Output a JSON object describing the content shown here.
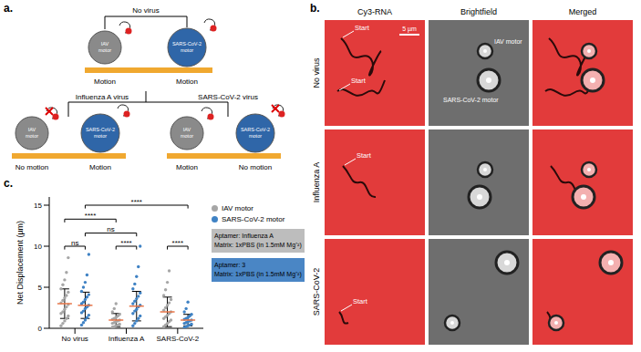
{
  "panel_a": {
    "letter": "a.",
    "top_label": "No virus",
    "motors": [
      "IAV motor",
      "SARS-CoV-2 motor"
    ],
    "conditions": [
      "Influenza A virus",
      "SARS-CoV-2 virus"
    ],
    "states": [
      "Motion",
      "No motion"
    ]
  },
  "panel_b": {
    "letter": "b.",
    "columns": [
      "Cy3-RNA",
      "Brightfield",
      "Merged"
    ],
    "rows": [
      "No virus",
      "Influenza A",
      "SARS-CoV-2"
    ],
    "start_label": "Start",
    "scale_bar": "5 µm",
    "motor_labels": [
      "IAV motor",
      "SARS-CoV-2 motor"
    ]
  },
  "chart_data": {
    "letter": "c.",
    "type": "scatter",
    "categories": [
      "No virus",
      "Influenza A",
      "SARS-CoV-2"
    ],
    "ylabel": "Net Displacement (µm)",
    "ylim": [
      0,
      16
    ],
    "yticks": [
      0,
      5,
      10,
      15
    ],
    "legend": "right",
    "series": [
      {
        "name": "IAV motor",
        "color": "#a6a6a6",
        "points": [
          [
            0.3,
            0.6,
            0.9,
            1.2,
            1.5,
            1.8,
            2.0,
            2.3,
            2.6,
            2.9,
            3.1,
            3.4,
            3.7,
            4.0,
            4.4,
            4.8,
            5.3,
            5.9,
            6.8,
            8.6
          ],
          [
            0.1,
            0.2,
            0.3,
            0.4,
            0.5,
            0.6,
            0.7,
            0.8,
            0.9,
            1.0,
            1.1,
            1.2,
            1.3,
            1.5,
            1.7,
            2.0,
            2.4,
            3.0
          ],
          [
            0.2,
            0.4,
            0.6,
            0.8,
            1.0,
            1.2,
            1.4,
            1.6,
            1.8,
            2.0,
            2.2,
            2.5,
            2.8,
            3.1,
            3.5,
            4.0,
            4.7,
            5.6,
            7.0
          ]
        ],
        "mean": [
          3.0,
          1.0,
          2.0
        ],
        "sd": [
          1.8,
          0.8,
          1.8
        ]
      },
      {
        "name": "SARS-CoV-2 motor",
        "color": "#3f82c4",
        "points": [
          [
            0.4,
            0.7,
            1.0,
            1.3,
            1.6,
            1.9,
            2.1,
            2.4,
            2.6,
            2.8,
            3.0,
            3.2,
            3.5,
            3.8,
            4.1,
            4.5,
            5.0,
            5.6,
            6.5,
            9.0
          ],
          [
            0.3,
            0.6,
            0.9,
            1.2,
            1.5,
            1.8,
            2.1,
            2.3,
            2.6,
            2.8,
            3.0,
            3.3,
            3.6,
            3.9,
            4.3,
            4.8,
            5.4,
            6.3,
            7.5,
            10.0
          ],
          [
            0.1,
            0.2,
            0.3,
            0.4,
            0.5,
            0.6,
            0.7,
            0.8,
            0.9,
            1.0,
            1.1,
            1.2,
            1.3,
            1.5,
            1.7,
            2.0,
            2.4,
            3.2
          ]
        ],
        "mean": [
          2.8,
          2.7,
          1.0
        ],
        "sd": [
          1.6,
          1.8,
          0.7
        ]
      }
    ],
    "annotations": [
      {
        "label": "****",
        "from": [
          0,
          1
        ],
        "to": [
          2,
          1
        ],
        "y": 15
      },
      {
        "label": "****",
        "from": [
          0,
          0
        ],
        "to": [
          1,
          0
        ],
        "y": 13.3
      },
      {
        "label": "ns",
        "from": [
          0,
          1
        ],
        "to": [
          1,
          1
        ],
        "y": 11.6
      },
      {
        "label": "ns",
        "from": [
          0,
          0
        ],
        "to": [
          0,
          1
        ],
        "y": 10
      },
      {
        "label": "****",
        "from": [
          1,
          0
        ],
        "to": [
          1,
          1
        ],
        "y": 10
      },
      {
        "label": "****",
        "from": [
          2,
          0
        ],
        "to": [
          2,
          1
        ],
        "y": 10
      }
    ],
    "boxes": [
      {
        "lines": [
          "Aptamer: Influenza A",
          "Matrix: 1xPBS (in 1.5mM Mg⁺²)"
        ],
        "color": "#bdbdbd"
      },
      {
        "lines": [
          "Aptamer: 3",
          "Matrix: 1xPBS (in 1.5mM Mg⁺²)"
        ],
        "color": "#4a86c5"
      }
    ]
  }
}
